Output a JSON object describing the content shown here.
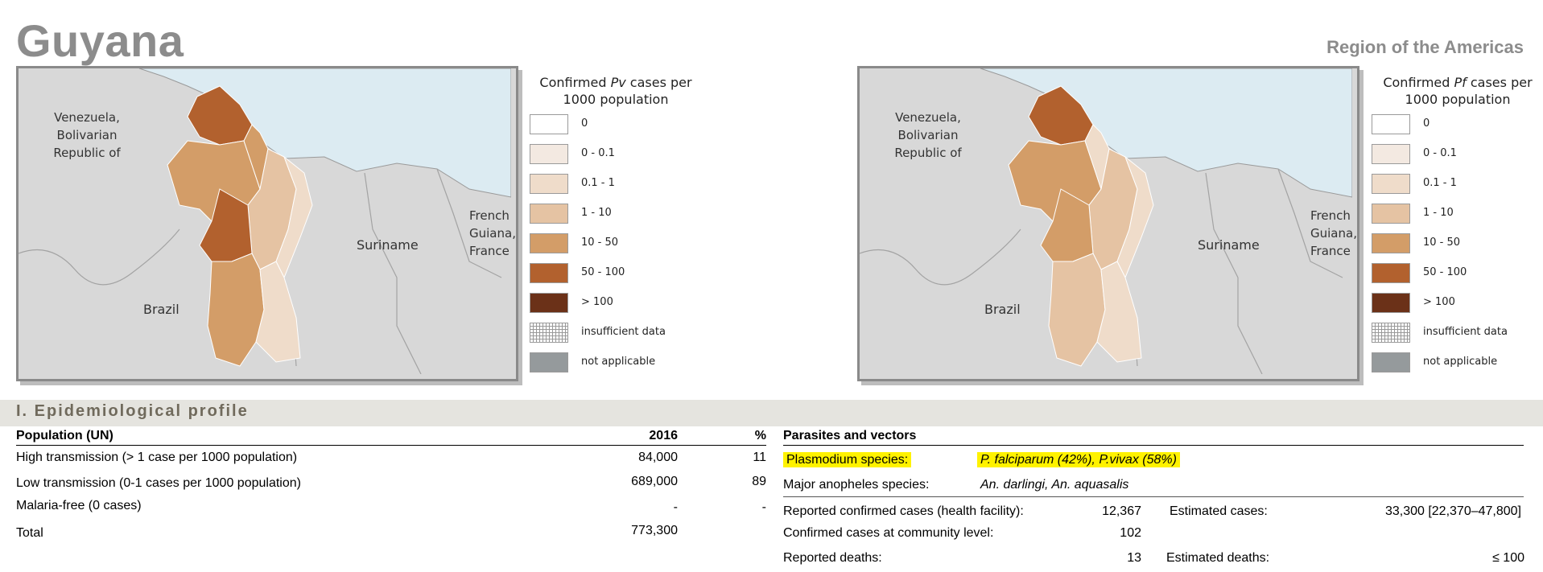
{
  "page": {
    "country": "Guyana",
    "region": "Region of the Americas"
  },
  "maps": [
    {
      "legend_title_pre": "Confirmed ",
      "legend_title_em": "Pv",
      "legend_title_post": " cases per 1000 population",
      "labels": {
        "venezuela_1": "Venezuela,",
        "venezuela_2": "Bolivarian",
        "venezuela_3": "Republic of",
        "suriname": "Suriname",
        "french_1": "French",
        "french_2": "Guiana,",
        "french_3": "France",
        "brazil": "Brazil"
      }
    },
    {
      "legend_title_pre": "Confirmed ",
      "legend_title_em": "Pf",
      "legend_title_post": " cases per 1000 population",
      "labels": {
        "venezuela_1": "Venezuela,",
        "venezuela_2": "Bolivarian",
        "venezuela_3": "Republic of",
        "suriname": "Suriname",
        "french_1": "French",
        "french_2": "Guiana,",
        "french_3": "France",
        "brazil": "Brazil"
      }
    }
  ],
  "legend": {
    "items": [
      {
        "label": "0",
        "color": "#ffffff"
      },
      {
        "label": "0 - 0.1",
        "color": "#f3e9e1"
      },
      {
        "label": "0.1 - 1",
        "color": "#efdcca"
      },
      {
        "label": "1 - 10",
        "color": "#e5c3a3"
      },
      {
        "label": "10 - 50",
        "color": "#d39d68"
      },
      {
        "label": "50 - 100",
        "color": "#b2612e"
      },
      {
        "label": "> 100",
        "color": "#6b3118"
      },
      {
        "label": "insufficient data",
        "color": "hatched"
      },
      {
        "label": "not applicable",
        "color": "#959a9c"
      }
    ]
  },
  "colors": {
    "sea": "#dcebf2",
    "neighbor_land": "#d8d8d8",
    "highlight": "#fff200",
    "section_bg": "#e5e4df",
    "section_text": "#706a5c"
  },
  "section": {
    "title": "I. Epidemiological profile"
  },
  "population": {
    "header": "Population (UN)",
    "year": "2016",
    "pct": "%",
    "rows": [
      {
        "label": "High transmission (> 1 case per 1000 population)",
        "value": "84,000",
        "pct": "11"
      },
      {
        "label": "Low transmission (0-1 cases per 1000 population)",
        "value": "689,000",
        "pct": "89"
      },
      {
        "label": "Malaria-free (0 cases)",
        "value": "-",
        "pct": "-"
      },
      {
        "label": "Total",
        "value": "773,300",
        "pct": ""
      }
    ]
  },
  "parasites": {
    "header": "Parasites and vectors",
    "species_label": "Plasmodium species:",
    "species_value": "P. falciparum (42%), P.vivax (58%)",
    "anopheles_label": "Major anopheles species:",
    "anopheles_value": "An. darlingi, An. aquasalis",
    "reported_cases_label": "Reported confirmed cases (health facility):",
    "reported_cases_value": "12,367",
    "estimated_cases_label": "Estimated cases:",
    "estimated_cases_value": "33,300 [22,370–47,800]",
    "community_label": "Confirmed cases at community level:",
    "community_value": "102",
    "deaths_label": "Reported deaths:",
    "deaths_value": "13",
    "est_deaths_label": "Estimated deaths:",
    "est_deaths_value": "≤ 100"
  }
}
